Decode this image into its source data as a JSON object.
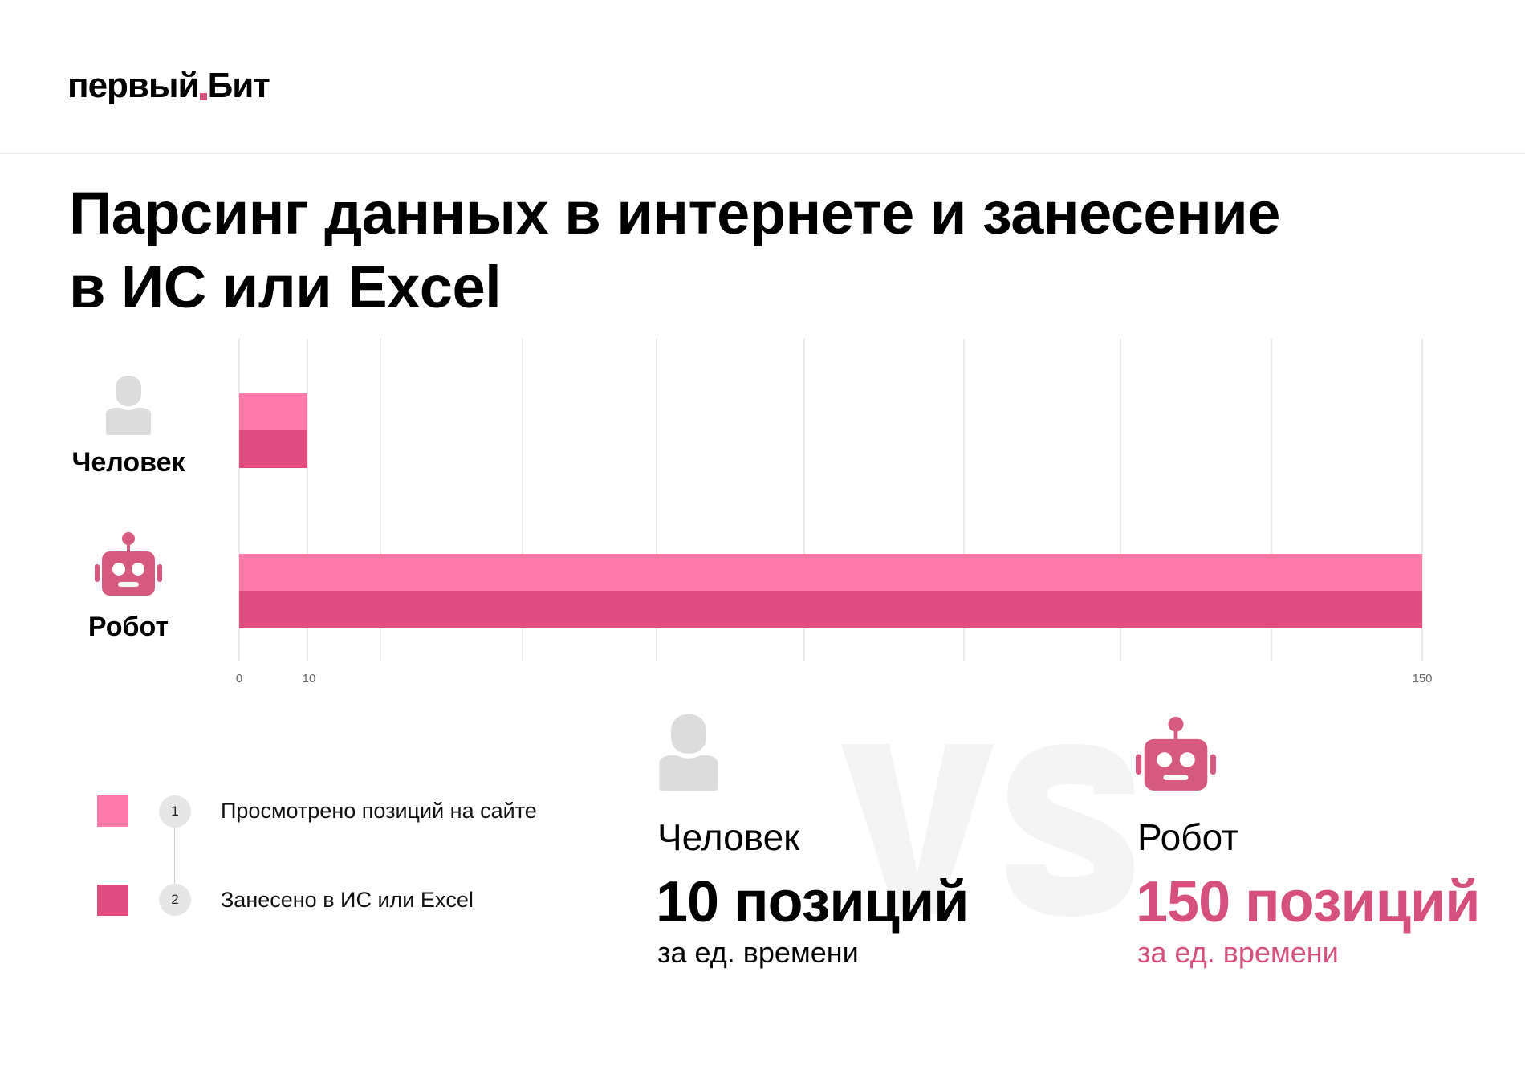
{
  "logo": {
    "text_left": "первый",
    "text_right": "Бит",
    "accent": "#d6507f"
  },
  "title": {
    "line1": "Парсинг данных в интернете и занесение",
    "line2": "в ИС или Excel"
  },
  "chart_data": {
    "type": "bar",
    "orientation": "horizontal",
    "categories": [
      "Человек",
      "Робот"
    ],
    "series": [
      {
        "name": "Просмотрено позиций на сайте",
        "values": [
          10,
          150
        ],
        "color": "#ff7aa8"
      },
      {
        "name": "Занесено в ИС или Excel",
        "values": [
          10,
          150
        ],
        "color": "#e04d80"
      }
    ],
    "xlim": [
      0,
      150
    ],
    "xticks": [
      "0",
      "10",
      "150"
    ],
    "grid": true,
    "legend_position": "bottom-left"
  },
  "legend": [
    {
      "num": "1",
      "label": "Просмотрено позиций на сайте"
    },
    {
      "num": "2",
      "label": "Занесено в ИС или Excel"
    }
  ],
  "comparison": {
    "vs": "VS",
    "human": {
      "name": "Человек",
      "value": "10 позиций",
      "sub": "за ед. времени"
    },
    "robot": {
      "name": "Робот",
      "value": "150 позиций",
      "sub": "за ед. времени",
      "color": "#d6507f"
    }
  },
  "icons": {
    "human": "person-icon",
    "robot": "robot-icon"
  }
}
